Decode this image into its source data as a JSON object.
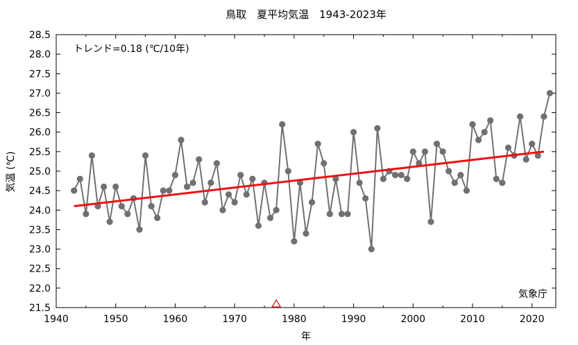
{
  "chart_data": {
    "type": "line",
    "title": "鳥取　夏平均気温　1943-2023年",
    "xlabel": "年",
    "ylabel": "気温 (℃)",
    "xlim": [
      1940,
      2024
    ],
    "ylim": [
      21.5,
      28.5
    ],
    "x_ticks": [
      "1940",
      "1950",
      "1960",
      "1970",
      "1980",
      "1990",
      "2000",
      "2010",
      "2020"
    ],
    "y_ticks": [
      "21.5",
      "22.0",
      "22.5",
      "23.0",
      "23.5",
      "24.0",
      "24.5",
      "25.0",
      "25.5",
      "26.0",
      "26.5",
      "27.0",
      "27.5",
      "28.0",
      "28.5"
    ],
    "grid": false,
    "colors": {
      "series": "#707070",
      "trend": "#ee1111",
      "marker": "#e41a1c"
    },
    "annotation_trend": "トレンド=0.18 (℃/10年)",
    "source_label": "気象庁",
    "marker_year": 1977,
    "x": [
      1943,
      1944,
      1945,
      1946,
      1947,
      1948,
      1949,
      1950,
      1951,
      1952,
      1953,
      1954,
      1955,
      1956,
      1957,
      1958,
      1959,
      1960,
      1961,
      1962,
      1963,
      1964,
      1965,
      1966,
      1967,
      1968,
      1969,
      1970,
      1971,
      1972,
      1973,
      1974,
      1975,
      1976,
      1977,
      1978,
      1979,
      1980,
      1981,
      1982,
      1983,
      1984,
      1985,
      1986,
      1987,
      1988,
      1989,
      1990,
      1991,
      1992,
      1993,
      1994,
      1995,
      1996,
      1997,
      1998,
      1999,
      2000,
      2001,
      2002,
      2003,
      2004,
      2005,
      2006,
      2007,
      2008,
      2009,
      2010,
      2011,
      2012,
      2013,
      2014,
      2015,
      2016,
      2017,
      2018,
      2019,
      2020,
      2021,
      2022,
      2023
    ],
    "values": [
      24.5,
      24.8,
      23.9,
      25.4,
      24.1,
      24.6,
      23.7,
      24.6,
      24.1,
      23.9,
      24.3,
      23.5,
      25.4,
      24.1,
      23.8,
      24.5,
      24.5,
      24.9,
      25.8,
      24.6,
      24.7,
      25.3,
      24.2,
      24.7,
      25.2,
      24.0,
      24.4,
      24.2,
      24.9,
      24.4,
      24.8,
      23.6,
      24.7,
      23.8,
      24.0,
      26.2,
      25.0,
      23.2,
      24.7,
      23.4,
      24.2,
      25.7,
      25.2,
      23.9,
      24.8,
      23.9,
      23.9,
      26.0,
      24.7,
      24.3,
      23.0,
      26.1,
      24.8,
      25.0,
      24.9,
      24.9,
      24.8,
      25.5,
      25.2,
      25.5,
      23.7,
      25.7,
      25.5,
      25.0,
      24.7,
      24.9,
      24.5,
      26.2,
      25.8,
      26.0,
      26.3,
      24.8,
      24.7,
      25.6,
      25.4,
      26.4,
      25.3,
      25.7,
      25.4,
      26.4,
      27.0
    ],
    "trend": {
      "x": [
        1943,
        2022
      ],
      "y": [
        24.1,
        25.5
      ]
    }
  }
}
